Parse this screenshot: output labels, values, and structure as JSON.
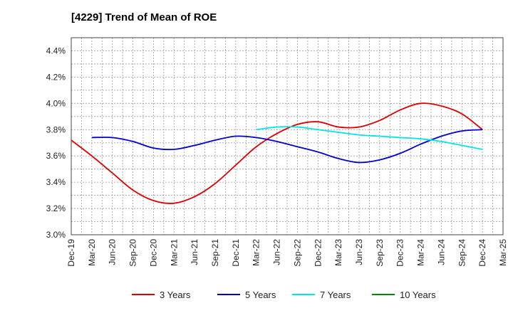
{
  "chart_data": {
    "type": "line",
    "title": "[4229]  Trend of Mean of ROE",
    "xlabel": "",
    "ylabel": "",
    "ylim": [
      3.0,
      4.5
    ],
    "yticks": [
      3.0,
      3.2,
      3.4,
      3.6,
      3.8,
      4.0,
      4.2,
      4.4
    ],
    "ytick_labels": [
      "3.0%",
      "3.2%",
      "3.4%",
      "3.6%",
      "3.8%",
      "4.0%",
      "4.2%",
      "4.4%"
    ],
    "categories": [
      "Dec-19",
      "Mar-20",
      "Jun-20",
      "Sep-20",
      "Dec-20",
      "Mar-21",
      "Jun-21",
      "Sep-21",
      "Dec-21",
      "Mar-22",
      "Jun-22",
      "Sep-22",
      "Dec-22",
      "Mar-23",
      "Jun-23",
      "Sep-23",
      "Dec-23",
      "Mar-24",
      "Jun-24",
      "Sep-24",
      "Dec-24",
      "Mar-25"
    ],
    "grid": true,
    "legend_position": "bottom",
    "series": [
      {
        "name": "3 Years",
        "color": "#dd0000",
        "values": [
          3.72,
          3.6,
          3.47,
          3.34,
          3.26,
          3.24,
          3.29,
          3.39,
          3.53,
          3.67,
          3.77,
          3.84,
          3.86,
          3.82,
          3.82,
          3.87,
          3.95,
          4.0,
          3.98,
          3.92,
          3.8,
          null
        ]
      },
      {
        "name": "5 Years",
        "color": "#0000cc",
        "values": [
          null,
          3.74,
          3.74,
          3.71,
          3.66,
          3.65,
          3.68,
          3.72,
          3.75,
          3.74,
          3.71,
          3.67,
          3.63,
          3.58,
          3.55,
          3.57,
          3.62,
          3.69,
          3.75,
          3.79,
          3.8,
          null
        ]
      },
      {
        "name": "7 Years",
        "color": "#00e5e5",
        "values": [
          null,
          null,
          null,
          null,
          null,
          null,
          null,
          null,
          null,
          3.8,
          3.82,
          3.82,
          3.8,
          3.78,
          3.76,
          3.75,
          3.74,
          3.73,
          3.71,
          3.68,
          3.65,
          null
        ]
      },
      {
        "name": "10 Years",
        "color": "#008800",
        "values": [
          null,
          null,
          null,
          null,
          null,
          null,
          null,
          null,
          null,
          null,
          null,
          null,
          null,
          null,
          null,
          null,
          null,
          null,
          null,
          null,
          null,
          null
        ]
      }
    ]
  }
}
